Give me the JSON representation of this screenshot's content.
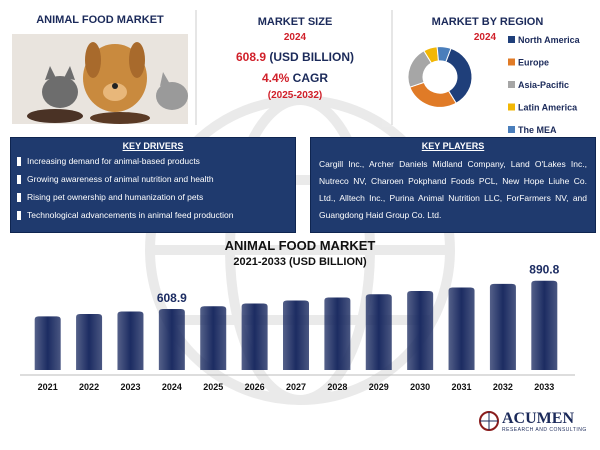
{
  "market_title": "ANIMAL FOOD MARKET",
  "market_size": {
    "title": "MARKET SIZE",
    "year": "2024",
    "value": 608.9,
    "unit": "(USD BILLION)",
    "cagr": "4.4%",
    "cagr_label": "CAGR",
    "period": "(2025-2032)"
  },
  "key_drivers": {
    "title": "KEY DRIVERS",
    "items": [
      "Increasing demand for animal-based products",
      "Growing awareness of animal nutrition and health",
      "Rising pet ownership and humanization of pets",
      "Technological advancements in animal feed production"
    ]
  },
  "key_players": {
    "title": "KEY PLAYERS",
    "text": "Cargill Inc., Archer Daniels Midland Company, Land O'Lakes Inc., Nutreco NV, Charoen Pokphand Foods PCL, New Hope Liuhe Co. Ltd., Alltech Inc., Purina Animal Nutrition LLC, ForFarmers NV, and Guangdong Haid Group Co. Ltd."
  },
  "logo": {
    "name": "ACUMEN",
    "tagline": "RESEARCH AND CONSULTING"
  },
  "chart_data": [
    {
      "type": "donut",
      "title": "MARKET BY REGION",
      "subtitle": "2024",
      "categories": [
        "North America",
        "Europe",
        "Asia-Pacific",
        "Latin America",
        "The MEA"
      ],
      "values": [
        36,
        28,
        22,
        7,
        7
      ],
      "colors": [
        "#1f3f7a",
        "#e07b27",
        "#a6a6a6",
        "#f2b705",
        "#4a7ebb"
      ]
    },
    {
      "type": "bar",
      "title": "ANIMAL FOOD MARKET",
      "subtitle": "2021-2033 (USD BILLION)",
      "categories": [
        "2021",
        "2022",
        "2023",
        "2024",
        "2025",
        "2026",
        "2027",
        "2028",
        "2029",
        "2030",
        "2031",
        "2032",
        "2033"
      ],
      "values": [
        535.1,
        558.6,
        583.2,
        608.9,
        635.7,
        663.7,
        692.9,
        723.4,
        755.2,
        788.4,
        823.1,
        859.3,
        890.8
      ],
      "value_labels": [
        null,
        null,
        null,
        "608.9",
        null,
        null,
        null,
        null,
        null,
        null,
        null,
        null,
        "890.8"
      ],
      "color": "#1c2c62"
    }
  ]
}
